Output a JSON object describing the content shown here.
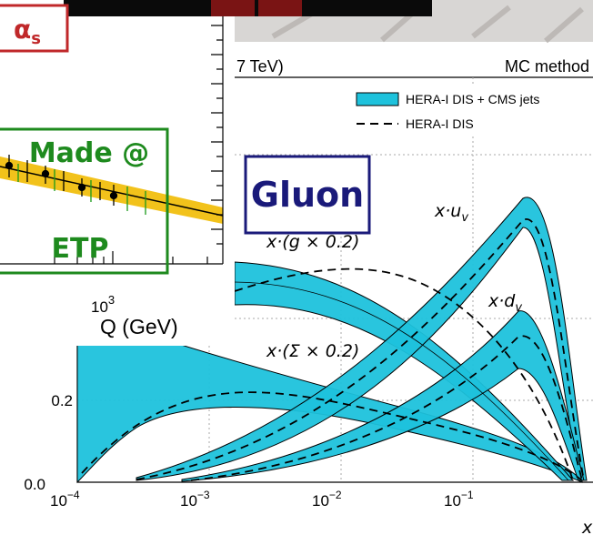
{
  "alpha_badge": {
    "symbol": "α",
    "sub": "s"
  },
  "made_badge": {
    "line1": "Made @",
    "line2": "ETP"
  },
  "q_axis": {
    "tick_base": "10",
    "tick_exp": "3",
    "label": "Q (GeV)"
  },
  "header": {
    "energy": "7 TeV)",
    "method": "MC method"
  },
  "legend": [
    "HERA-I DIS + CMS jets",
    "HERA-I DIS"
  ],
  "gluon_badge": "Gluon",
  "curve_labels": [
    {
      "main": "x·u",
      "sub": "v"
    },
    {
      "main": "x·(g × 0.2)"
    },
    {
      "main": "x·d",
      "sub": "v"
    },
    {
      "main": "x·(Σ × 0.2)"
    }
  ],
  "y_ticks": [
    "0.2",
    "0.0"
  ],
  "x_ticks": [
    {
      "base": "10",
      "exp": "−4"
    },
    {
      "base": "10",
      "exp": "−3"
    },
    {
      "base": "10",
      "exp": "−2"
    },
    {
      "base": "10",
      "exp": "−1"
    }
  ],
  "x_label": "x"
}
